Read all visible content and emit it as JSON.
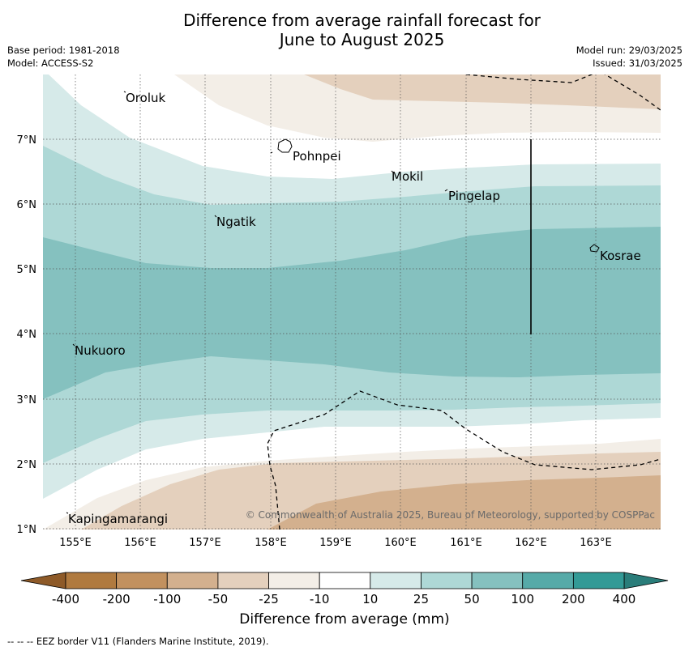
{
  "title": {
    "line1": "Difference from average rainfall forecast for",
    "line2": "June to August 2025"
  },
  "meta": {
    "base_period": "Base period: 1981-2018",
    "model": "Model: ACCESS-S2",
    "model_run": "Model run: 29/03/2025",
    "issued": "Issued: 31/03/2025"
  },
  "map": {
    "lon_labels": [
      "155°E",
      "156°E",
      "157°E",
      "158°E",
      "159°E",
      "160°E",
      "161°E",
      "162°E",
      "163°E"
    ],
    "lat_labels": [
      "7°N",
      "6°N",
      "5°N",
      "4°N",
      "3°N",
      "2°N",
      "1°N"
    ],
    "places": [
      {
        "name": "Oroluk"
      },
      {
        "name": "Pohnpei"
      },
      {
        "name": "Mokil"
      },
      {
        "name": "Pingelap"
      },
      {
        "name": "Ngatik"
      },
      {
        "name": "Kosrae"
      },
      {
        "name": "Nukuoro"
      },
      {
        "name": "Kapingamarangi"
      }
    ],
    "copyright": "© Commonwealth of Australia 2025, Bureau of Meteorology, supported by COSPPac"
  },
  "colorbar": {
    "ticks": [
      "-400",
      "-200",
      "-100",
      "-50",
      "-25",
      "-10",
      "10",
      "25",
      "50",
      "100",
      "200",
      "400"
    ],
    "colors": [
      "#b07a3f",
      "#c2915f",
      "#d3b08e",
      "#e4d0bd",
      "#f3eee7",
      "#ffffff",
      "#d6eae9",
      "#aed8d6",
      "#85c1bf",
      "#56aaa8",
      "#339a96"
    ],
    "under_color": "#8e5a28",
    "over_color": "#2a7d7a",
    "label": "Difference from average (mm)"
  },
  "footer": "--  --  -- EEZ border V11 (Flanders Marine Institute, 2019)."
}
